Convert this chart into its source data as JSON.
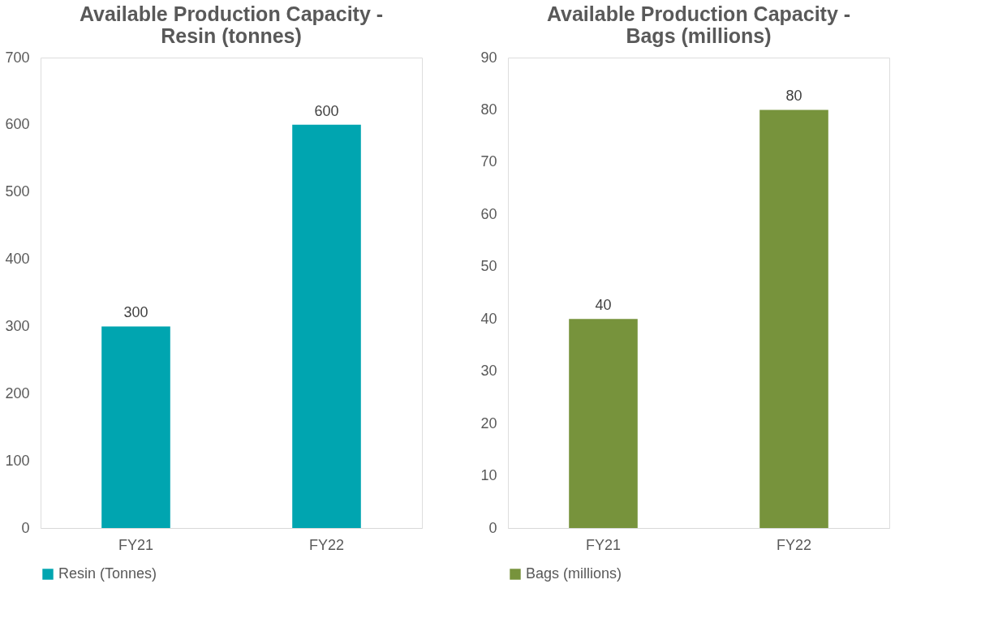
{
  "chart_data": [
    {
      "type": "bar",
      "title": "Available Production Capacity - Resin (tonnes)",
      "categories": [
        "FY21",
        "FY22"
      ],
      "series": [
        {
          "name": "Resin (Tonnes)",
          "color": "#00a5b0",
          "values": [
            300,
            600
          ]
        }
      ],
      "ylim": [
        0,
        700
      ],
      "yticks": [
        0,
        100,
        200,
        300,
        400,
        500,
        600,
        700
      ],
      "grid": false,
      "legend": "bottom",
      "data_labels": true
    },
    {
      "type": "bar",
      "title": "Available Production Capacity - Bags (millions)",
      "categories": [
        "FY21",
        "FY22"
      ],
      "series": [
        {
          "name": "Bags (millions)",
          "color": "#77933c",
          "values": [
            40,
            80
          ]
        }
      ],
      "ylim": [
        0,
        90
      ],
      "yticks": [
        0,
        10,
        20,
        30,
        40,
        50,
        60,
        70,
        80,
        90
      ],
      "grid": false,
      "legend": "bottom",
      "data_labels": true
    }
  ]
}
